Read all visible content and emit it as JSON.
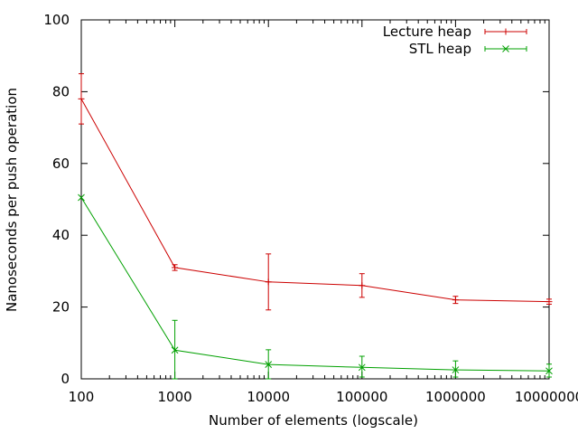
{
  "chart_data": {
    "type": "line",
    "title": "",
    "xlabel": "Number of elements (logscale)",
    "ylabel": "Nanoseconds per push operation",
    "x_scale": "log",
    "x": [
      100,
      1000,
      10000,
      100000,
      1000000,
      10000000
    ],
    "x_tick_labels": [
      "100",
      "1000",
      "10000",
      "100000",
      "1000000",
      "10000000"
    ],
    "xlim": [
      100,
      10000000
    ],
    "ylim": [
      0,
      100
    ],
    "y_ticks": [
      0,
      20,
      40,
      60,
      80,
      100
    ],
    "y_tick_labels": [
      "0",
      "20",
      "40",
      "60",
      "80",
      "100"
    ],
    "grid": false,
    "legend_position": "top-right",
    "series": [
      {
        "name": "Lecture heap",
        "color": "#cc0000",
        "marker": "plus",
        "values": [
          78,
          31,
          27,
          26,
          22,
          21.5
        ],
        "error_low": [
          71,
          30.2,
          19.2,
          22.7,
          21.0,
          20.8
        ],
        "error_high": [
          85,
          31.8,
          34.8,
          29.3,
          23.0,
          22.2
        ]
      },
      {
        "name": "STL heap",
        "color": "#00a000",
        "marker": "x",
        "values": [
          50.5,
          8,
          4,
          3.2,
          2.5,
          2.2
        ],
        "error_low": [
          50.5,
          0,
          0,
          0.5,
          0.5,
          0.5
        ],
        "error_high": [
          50.5,
          16.3,
          8.1,
          6.3,
          5.0,
          4.1
        ]
      }
    ]
  }
}
